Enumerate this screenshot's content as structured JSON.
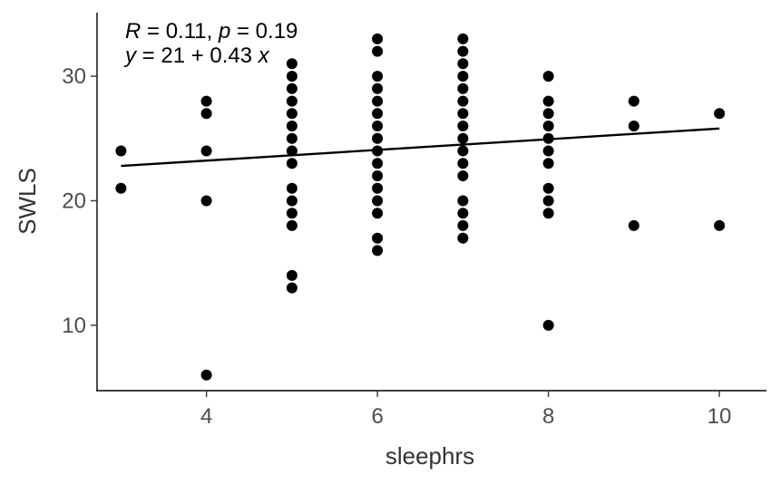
{
  "chart_data": {
    "type": "scatter",
    "xlabel": "sleephrs",
    "ylabel": "SWLS",
    "xlim": [
      2.72,
      10.55
    ],
    "ylim": [
      4.75,
      35.1
    ],
    "x_ticks": [
      4,
      6,
      8,
      10
    ],
    "y_ticks": [
      10,
      20,
      30
    ],
    "grid": false,
    "annotation": {
      "line1": {
        "r_var": "R",
        "r_text": " = 0.11, ",
        "p_var": "p",
        "p_text": " = 0.19"
      },
      "line2": {
        "y_var": "y",
        "eq_text": " = 21 + 0.43 ",
        "x_var": "x"
      }
    },
    "regression": {
      "intercept": 21.5,
      "slope": 0.43,
      "x_range": [
        3,
        10
      ]
    },
    "points": [
      [
        3,
        24
      ],
      [
        3,
        21
      ],
      [
        4,
        28
      ],
      [
        4,
        27
      ],
      [
        4,
        24
      ],
      [
        4,
        20
      ],
      [
        4,
        6
      ],
      [
        5,
        31
      ],
      [
        5,
        30
      ],
      [
        5,
        29
      ],
      [
        5,
        28
      ],
      [
        5,
        27
      ],
      [
        5,
        26
      ],
      [
        5,
        25
      ],
      [
        5,
        24
      ],
      [
        5,
        23
      ],
      [
        5,
        21
      ],
      [
        5,
        20
      ],
      [
        5,
        19
      ],
      [
        5,
        18
      ],
      [
        5,
        14
      ],
      [
        5,
        13
      ],
      [
        6,
        33
      ],
      [
        6,
        32
      ],
      [
        6,
        30
      ],
      [
        6,
        29
      ],
      [
        6,
        28
      ],
      [
        6,
        27
      ],
      [
        6,
        26
      ],
      [
        6,
        25
      ],
      [
        6,
        24
      ],
      [
        6,
        23
      ],
      [
        6,
        22
      ],
      [
        6,
        21
      ],
      [
        6,
        20
      ],
      [
        6,
        19
      ],
      [
        6,
        17
      ],
      [
        6,
        16
      ],
      [
        7,
        33
      ],
      [
        7,
        32
      ],
      [
        7,
        31
      ],
      [
        7,
        30
      ],
      [
        7,
        29
      ],
      [
        7,
        28
      ],
      [
        7,
        27
      ],
      [
        7,
        26
      ],
      [
        7,
        25
      ],
      [
        7,
        24
      ],
      [
        7,
        23
      ],
      [
        7,
        22
      ],
      [
        7,
        20
      ],
      [
        7,
        19
      ],
      [
        7,
        18
      ],
      [
        7,
        17
      ],
      [
        8,
        30
      ],
      [
        8,
        28
      ],
      [
        8,
        27
      ],
      [
        8,
        26
      ],
      [
        8,
        25
      ],
      [
        8,
        24
      ],
      [
        8,
        23
      ],
      [
        8,
        21
      ],
      [
        8,
        20
      ],
      [
        8,
        19
      ],
      [
        8,
        10
      ],
      [
        9,
        28
      ],
      [
        9,
        26
      ],
      [
        9,
        18
      ],
      [
        10,
        27
      ],
      [
        10,
        18
      ]
    ]
  }
}
